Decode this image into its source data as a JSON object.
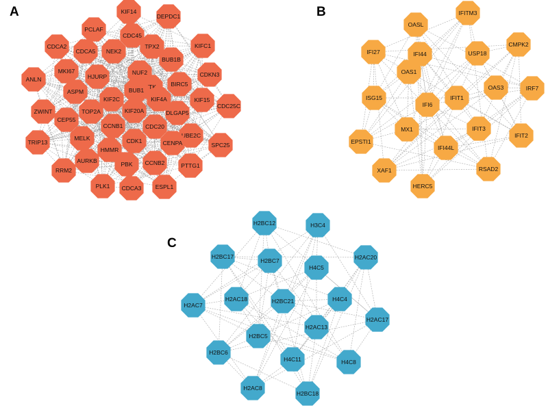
{
  "panels": [
    {
      "label": "A",
      "color": "#ee6a4a",
      "nodes": [
        "KIF14",
        "DEPDC1",
        "PCLAF",
        "CDC45",
        "CDCA2",
        "TPX2",
        "KIFC1",
        "NEK2",
        "CDCA5",
        "BUB1B",
        "MKI67",
        "NUF2",
        "HJURP",
        "CDKN3",
        "ANLN",
        "TTK",
        "BIRC5",
        "ASPM",
        "BUB1",
        "KIF4A",
        "KIF2C",
        "KIF15",
        "CDC25C",
        "ZWINT",
        "TOP2A",
        "KIF20A",
        "DLGAP5",
        "CEP55",
        "CCNB1",
        "CDC20",
        "UBE2C",
        "MELK",
        "CDK1",
        "CENPA",
        "TRIP13",
        "SPC25",
        "HMMR",
        "AURKB",
        "CCNB2",
        "PBK",
        "PTTG1",
        "RRM2",
        "CDCA3",
        "PLK1",
        "ESPL1"
      ]
    },
    {
      "label": "B",
      "color": "#f7a944",
      "nodes": [
        "IFITM3",
        "OASL",
        "CMPK2",
        "IFI27",
        "IFI44",
        "USP18",
        "OAS1",
        "IRF7",
        "OAS3",
        "ISG15",
        "IFI6",
        "IFIT1",
        "MX1",
        "IFIT3",
        "IFIT2",
        "EPSTI1",
        "IFI44L",
        "XAF1",
        "RSAD2",
        "HERC5"
      ]
    },
    {
      "label": "C",
      "color": "#43a9cc",
      "nodes": [
        "H2BC12",
        "H3C4",
        "H2BC17",
        "H2BC7",
        "H4C5",
        "H2AC20",
        "H2AC18",
        "H2BC21",
        "H4C4",
        "H2AC7",
        "H2AC17",
        "H2AC13",
        "H2BC5",
        "H2BC6",
        "H4C11",
        "H4C8",
        "H2AC8",
        "H2BC18"
      ]
    }
  ]
}
